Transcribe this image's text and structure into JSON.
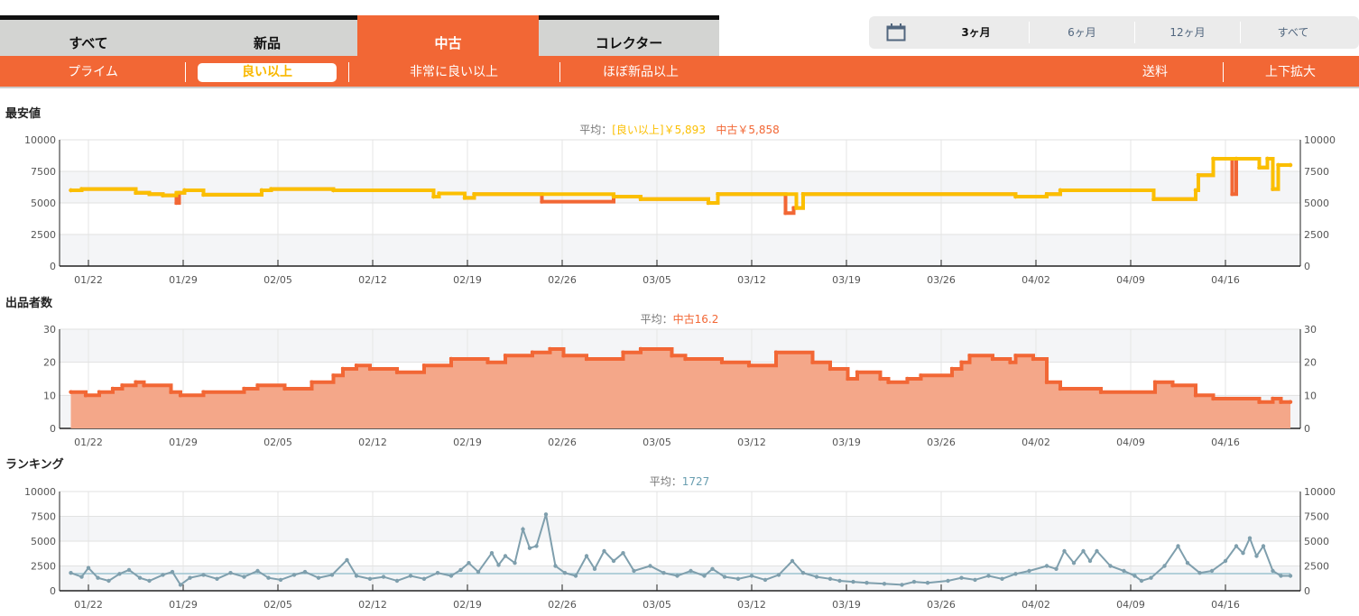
{
  "tabs": [
    {
      "label": "すべて",
      "color": "#47657f"
    },
    {
      "label": "新品",
      "color": "#76cc44"
    },
    {
      "label": "中古",
      "color": "#f26735"
    },
    {
      "label": "コレクター",
      "color": "#6a9fb1"
    }
  ],
  "range": {
    "icon": "calendar-icon",
    "options": [
      "3ヶ月",
      "6ヶ月",
      "12ヶ月",
      "すべて"
    ],
    "selected": "3ヶ月"
  },
  "subnav": {
    "prime": "プライム",
    "good": "良い以上",
    "very_good": "非常に良い以上",
    "like_new": "ほぼ新品以上",
    "shipping": "送料",
    "zoom": "上下拡大"
  },
  "price": {
    "title": "最安値",
    "avg_label": "平均：",
    "avg_good": "[良い以上]￥5,893",
    "avg_used": "中古￥5,858"
  },
  "sellers": {
    "title": "出品者数",
    "avg_label": "平均：",
    "avg_used": "中古16.2"
  },
  "rank": {
    "title": "ランキング",
    "avg_label": "平均：",
    "avg_value": "1727"
  },
  "chart_data": [
    {
      "type": "line",
      "name": "price",
      "yticks": [
        0,
        2500,
        5000,
        7500,
        10000
      ],
      "ylim": [
        0,
        10000
      ],
      "xticks": [
        "01/22",
        "01/29",
        "02/05",
        "02/12",
        "02/19",
        "02/26",
        "03/05",
        "03/12",
        "03/19",
        "03/26",
        "04/02",
        "04/09",
        "04/16"
      ],
      "xunit": "days since 01/22",
      "series": [
        {
          "name": "中古",
          "color": "#f26735",
          "step": true,
          "points": [
            [
              -1.3,
              6000
            ],
            [
              -0.5,
              6100
            ],
            [
              3.5,
              5800
            ],
            [
              4.5,
              5700
            ],
            [
              5.5,
              5600
            ],
            [
              6.5,
              5000
            ],
            [
              6.7,
              5800
            ],
            [
              7.1,
              6000
            ],
            [
              8.5,
              5650
            ],
            [
              12.8,
              6000
            ],
            [
              13.5,
              6100
            ],
            [
              18.1,
              6000
            ],
            [
              25.5,
              5500
            ],
            [
              25.9,
              5750
            ],
            [
              27.8,
              5400
            ],
            [
              28.5,
              5700
            ],
            [
              33.5,
              5100
            ],
            [
              38.8,
              5500
            ],
            [
              40.8,
              5300
            ],
            [
              45.8,
              5000
            ],
            [
              46.5,
              5700
            ],
            [
              51.5,
              4200
            ],
            [
              52.1,
              4600
            ],
            [
              52.8,
              5700
            ],
            [
              68.5,
              5500
            ],
            [
              70.8,
              5700
            ],
            [
              71.8,
              6000
            ],
            [
              78.7,
              5300
            ],
            [
              81.8,
              6000
            ],
            [
              82.0,
              7200
            ],
            [
              83.1,
              8500
            ],
            [
              84.5,
              5700
            ],
            [
              84.8,
              8500
            ],
            [
              86.5,
              7800
            ],
            [
              87.1,
              8500
            ],
            [
              87.5,
              6100
            ],
            [
              87.9,
              8000
            ],
            [
              88.8,
              8000
            ]
          ]
        },
        {
          "name": "良い以上",
          "color": "#fbbf00",
          "step": true,
          "points": [
            [
              -1.3,
              6000
            ],
            [
              -0.5,
              6100
            ],
            [
              3.5,
              5800
            ],
            [
              4.5,
              5700
            ],
            [
              5.5,
              5600
            ],
            [
              6.5,
              5800
            ],
            [
              7.1,
              6000
            ],
            [
              8.5,
              5650
            ],
            [
              12.8,
              6000
            ],
            [
              13.5,
              6100
            ],
            [
              18.1,
              6000
            ],
            [
              25.5,
              5500
            ],
            [
              25.9,
              5750
            ],
            [
              27.8,
              5400
            ],
            [
              28.5,
              5700
            ],
            [
              38.8,
              5500
            ],
            [
              40.8,
              5300
            ],
            [
              45.8,
              5000
            ],
            [
              46.5,
              5700
            ],
            [
              52.3,
              4600
            ],
            [
              52.8,
              5700
            ],
            [
              68.5,
              5500
            ],
            [
              70.8,
              5700
            ],
            [
              71.8,
              6000
            ],
            [
              78.7,
              5300
            ],
            [
              81.8,
              6000
            ],
            [
              82.0,
              7200
            ],
            [
              83.1,
              8500
            ],
            [
              86.5,
              7800
            ],
            [
              87.1,
              8500
            ],
            [
              87.5,
              6100
            ],
            [
              87.9,
              8000
            ],
            [
              88.8,
              8000
            ]
          ]
        }
      ]
    },
    {
      "type": "area",
      "name": "sellers",
      "yticks": [
        0,
        10,
        20,
        30
      ],
      "ylim": [
        0,
        30
      ],
      "xticks": [
        "01/22",
        "01/29",
        "02/05",
        "02/12",
        "02/19",
        "02/26",
        "03/05",
        "03/12",
        "03/19",
        "03/26",
        "04/02",
        "04/09",
        "04/16"
      ],
      "series": [
        {
          "name": "中古",
          "color": "#f26735",
          "fill": "#f4a789",
          "step": true,
          "points": [
            [
              -1.3,
              11
            ],
            [
              -0.2,
              10
            ],
            [
              0.8,
              11
            ],
            [
              1.8,
              12
            ],
            [
              2.5,
              13
            ],
            [
              3.5,
              14
            ],
            [
              4.1,
              13
            ],
            [
              6.1,
              11
            ],
            [
              6.8,
              10
            ],
            [
              8.5,
              11
            ],
            [
              11.5,
              12
            ],
            [
              12.5,
              13
            ],
            [
              14.5,
              12
            ],
            [
              16.5,
              14
            ],
            [
              18.1,
              16
            ],
            [
              18.8,
              18
            ],
            [
              19.8,
              19
            ],
            [
              20.8,
              18
            ],
            [
              22.8,
              17
            ],
            [
              24.8,
              19
            ],
            [
              26.8,
              21
            ],
            [
              29.5,
              20
            ],
            [
              30.8,
              22
            ],
            [
              32.8,
              23
            ],
            [
              34.1,
              24
            ],
            [
              35.1,
              22
            ],
            [
              36.8,
              21
            ],
            [
              39.5,
              23
            ],
            [
              40.8,
              24
            ],
            [
              43.1,
              22
            ],
            [
              44.1,
              21
            ],
            [
              46.8,
              20
            ],
            [
              48.8,
              19
            ],
            [
              50.8,
              23
            ],
            [
              53.5,
              20
            ],
            [
              54.8,
              18
            ],
            [
              56.1,
              15
            ],
            [
              56.8,
              17
            ],
            [
              58.5,
              15
            ],
            [
              59.1,
              14
            ],
            [
              60.5,
              15
            ],
            [
              61.5,
              16
            ],
            [
              63.8,
              18
            ],
            [
              64.5,
              20
            ],
            [
              65.1,
              22
            ],
            [
              66.8,
              21
            ],
            [
              68.1,
              20
            ],
            [
              68.5,
              22
            ],
            [
              69.8,
              21
            ],
            [
              70.8,
              14
            ],
            [
              71.8,
              12
            ],
            [
              74.8,
              11
            ],
            [
              78.8,
              14
            ],
            [
              80.1,
              13
            ],
            [
              81.8,
              10
            ],
            [
              83.1,
              9
            ],
            [
              86.5,
              8
            ],
            [
              87.5,
              9
            ],
            [
              88.1,
              8
            ],
            [
              88.8,
              8
            ]
          ]
        }
      ]
    },
    {
      "type": "line",
      "name": "ranking",
      "yticks": [
        0,
        2500,
        5000,
        7500,
        10000
      ],
      "ylim": [
        0,
        10000
      ],
      "average": 1727,
      "xticks": [
        "01/22",
        "01/29",
        "02/05",
        "02/12",
        "02/19",
        "02/26",
        "03/05",
        "03/12",
        "03/19",
        "03/26",
        "04/02",
        "04/09",
        "04/16"
      ],
      "series": [
        {
          "name": "ranking",
          "color": "#7f9fad",
          "points": [
            [
              -1.3,
              1800
            ],
            [
              -0.5,
              1400
            ],
            [
              0,
              2300
            ],
            [
              0.7,
              1300
            ],
            [
              1.5,
              1000
            ],
            [
              2.3,
              1700
            ],
            [
              3,
              2100
            ],
            [
              3.8,
              1300
            ],
            [
              4.5,
              1000
            ],
            [
              5.5,
              1600
            ],
            [
              6.2,
              1900
            ],
            [
              6.8,
              600
            ],
            [
              7.5,
              1300
            ],
            [
              8.5,
              1600
            ],
            [
              9.5,
              1200
            ],
            [
              10.5,
              1800
            ],
            [
              11.5,
              1400
            ],
            [
              12.5,
              2000
            ],
            [
              13.3,
              1300
            ],
            [
              14.2,
              1100
            ],
            [
              15.2,
              1600
            ],
            [
              16,
              1900
            ],
            [
              17,
              1300
            ],
            [
              18,
              1600
            ],
            [
              19.1,
              3100
            ],
            [
              19.8,
              1500
            ],
            [
              20.8,
              1200
            ],
            [
              21.8,
              1400
            ],
            [
              22.8,
              1000
            ],
            [
              23.8,
              1500
            ],
            [
              24.8,
              1200
            ],
            [
              25.8,
              1800
            ],
            [
              26.8,
              1500
            ],
            [
              27.5,
              2100
            ],
            [
              28.1,
              2800
            ],
            [
              28.8,
              1900
            ],
            [
              29.8,
              3800
            ],
            [
              30.3,
              2600
            ],
            [
              30.8,
              3500
            ],
            [
              31.5,
              2800
            ],
            [
              32.1,
              6200
            ],
            [
              32.6,
              4300
            ],
            [
              33.1,
              4500
            ],
            [
              33.8,
              7700
            ],
            [
              34.5,
              2500
            ],
            [
              35.2,
              1800
            ],
            [
              36,
              1500
            ],
            [
              36.8,
              3500
            ],
            [
              37.4,
              2200
            ],
            [
              38.1,
              4000
            ],
            [
              38.8,
              3000
            ],
            [
              39.5,
              3800
            ],
            [
              40.3,
              2000
            ],
            [
              41.5,
              2500
            ],
            [
              42.5,
              1800
            ],
            [
              43.5,
              1500
            ],
            [
              44.5,
              2000
            ],
            [
              45.5,
              1500
            ],
            [
              46.1,
              2200
            ],
            [
              47,
              1400
            ],
            [
              48,
              1200
            ],
            [
              49,
              1500
            ],
            [
              50,
              1100
            ],
            [
              51,
              1600
            ],
            [
              52,
              3000
            ],
            [
              52.8,
              1800
            ],
            [
              53.8,
              1400
            ],
            [
              54.8,
              1200
            ],
            [
              55.5,
              1000
            ],
            [
              56.5,
              900
            ],
            [
              57.5,
              800
            ],
            [
              58.8,
              700
            ],
            [
              60.1,
              600
            ],
            [
              61,
              900
            ],
            [
              62,
              800
            ],
            [
              63.5,
              1000
            ],
            [
              64.5,
              1300
            ],
            [
              65.5,
              1100
            ],
            [
              66.5,
              1500
            ],
            [
              67.5,
              1200
            ],
            [
              68.5,
              1700
            ],
            [
              69.5,
              2000
            ],
            [
              70.8,
              2500
            ],
            [
              71.5,
              2200
            ],
            [
              72.1,
              4000
            ],
            [
              72.8,
              2800
            ],
            [
              73.5,
              4000
            ],
            [
              74,
              3000
            ],
            [
              74.5,
              4000
            ],
            [
              75.5,
              2500
            ],
            [
              76.5,
              2000
            ],
            [
              77.3,
              1500
            ],
            [
              77.8,
              1000
            ],
            [
              78.5,
              1300
            ],
            [
              79.5,
              2500
            ],
            [
              80.5,
              4500
            ],
            [
              81.2,
              2800
            ],
            [
              82.1,
              1800
            ],
            [
              83,
              2000
            ],
            [
              84,
              3000
            ],
            [
              84.8,
              4500
            ],
            [
              85.3,
              3800
            ],
            [
              85.8,
              5300
            ],
            [
              86.3,
              3500
            ],
            [
              86.8,
              4500
            ],
            [
              87.5,
              2000
            ],
            [
              88.1,
              1500
            ],
            [
              88.8,
              1500
            ]
          ]
        }
      ]
    }
  ]
}
